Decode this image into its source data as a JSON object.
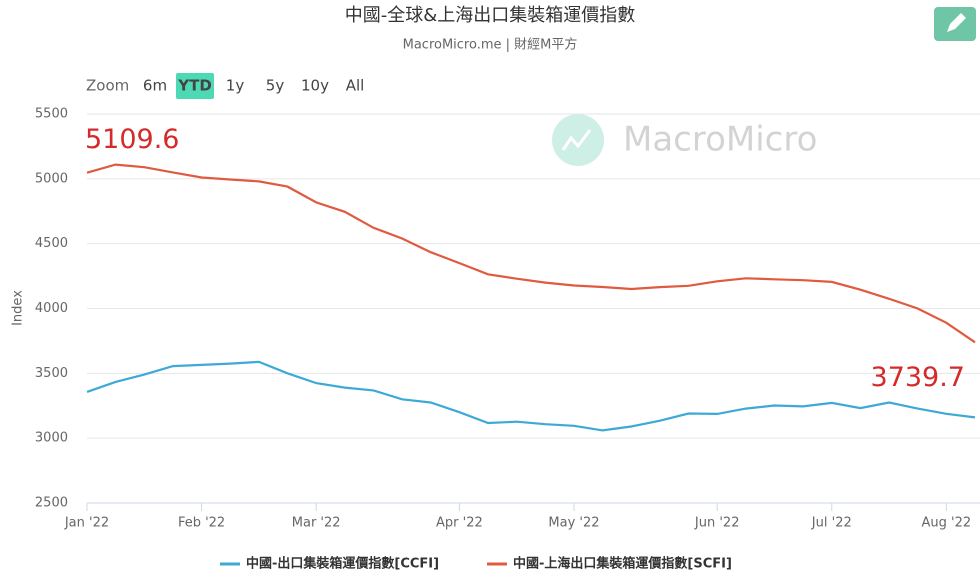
{
  "chart_data": {
    "type": "line",
    "title": "中國-全球&上海出口集裝箱運價指數",
    "subtitle": "MacroMicro.me | 財經M平方",
    "watermark": "MacroMicro",
    "ylabel": "Index",
    "range_selector": {
      "label": "Zoom",
      "buttons": [
        "6m",
        "YTD",
        "1y",
        "5y",
        "10y",
        "All"
      ],
      "selected": 1
    },
    "categories": [
      "Jan '22",
      null,
      null,
      null,
      "Feb '22",
      null,
      null,
      null,
      "Mar '22",
      null,
      null,
      null,
      null,
      "Apr '22",
      null,
      null,
      null,
      "May '22",
      null,
      null,
      null,
      null,
      "Jun '22",
      null,
      null,
      null,
      "Jul '22",
      null,
      null,
      null,
      "Aug '22",
      null
    ],
    "series": [
      {
        "name": "中國-出口集裝箱運價指數[CCFI]",
        "color": "#3ea9d6",
        "values": [
          3357,
          3434,
          3490,
          3556,
          3565,
          3575,
          3588,
          3500,
          3425,
          3390,
          3368,
          3300,
          3275,
          3200,
          3117,
          3127,
          3108,
          3095,
          3060,
          3090,
          3135,
          3190,
          3187,
          3228,
          3252,
          3245,
          3272,
          3232,
          3275,
          3228,
          3188,
          3160
        ]
      },
      {
        "name": "中國-上海出口集裝箱運價指數[SCFI]",
        "color": "#e05a3f",
        "values": [
          5047,
          5109.6,
          5090,
          5050,
          5010,
          4995,
          4980,
          4940,
          4818,
          4746,
          4622,
          4540,
          4434,
          4350,
          4264,
          4230,
          4200,
          4177,
          4166,
          4150,
          4165,
          4175,
          4210,
          4233,
          4225,
          4218,
          4205,
          4145,
          4075,
          4000,
          3890,
          3739.7
        ]
      }
    ],
    "annotations": [
      {
        "series": 1,
        "index": 1
      },
      {
        "series": 1,
        "index": 31
      }
    ],
    "ylim": [
      2500,
      5500
    ],
    "yticks": [
      2500,
      3000,
      3500,
      4000,
      4500,
      5000,
      5500
    ],
    "grid": true
  }
}
